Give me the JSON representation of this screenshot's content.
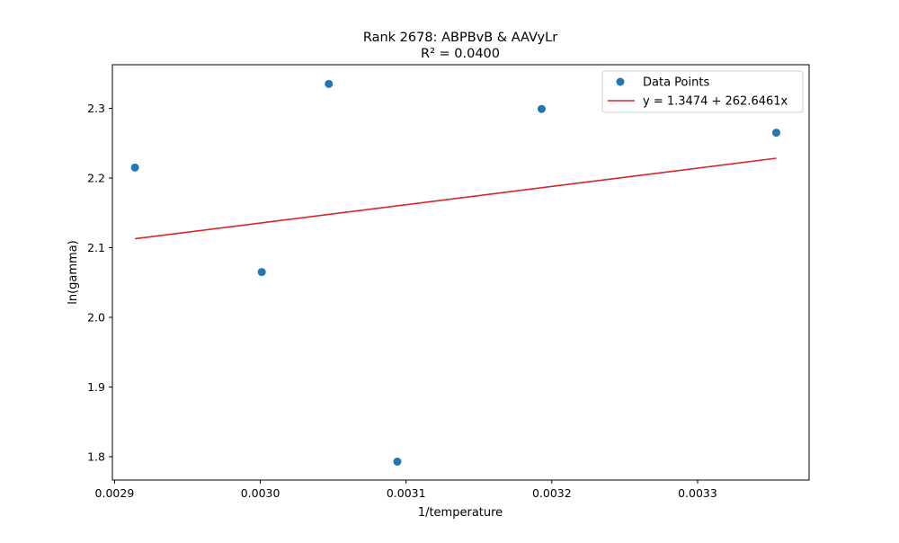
{
  "chart_data": {
    "type": "scatter",
    "title": "Rank 2678: ABPBvB & AAVyLr",
    "subtitle": "R² = 0.0400",
    "xlabel": "1/temperature",
    "ylabel": "ln(gamma)",
    "xlim": [
      0.0028985,
      0.0033765
    ],
    "ylim": [
      1.7665,
      2.3625
    ],
    "x_ticks": [
      {
        "value": 0.0029,
        "label": "0.0029"
      },
      {
        "value": 0.003,
        "label": "0.0030"
      },
      {
        "value": 0.0031,
        "label": "0.0031"
      },
      {
        "value": 0.0032,
        "label": "0.0032"
      },
      {
        "value": 0.0033,
        "label": "0.0033"
      }
    ],
    "y_ticks": [
      {
        "value": 1.8,
        "label": "1.8"
      },
      {
        "value": 1.9,
        "label": "1.9"
      },
      {
        "value": 2.0,
        "label": "2.0"
      },
      {
        "value": 2.1,
        "label": "2.1"
      },
      {
        "value": 2.2,
        "label": "2.2"
      },
      {
        "value": 2.3,
        "label": "2.3"
      }
    ],
    "grid": false,
    "legend_position": "top-right",
    "series": [
      {
        "name": "Data Points",
        "kind": "scatter",
        "color": "#1f77b4",
        "x": [
          0.002914,
          0.003001,
          0.003047,
          0.003094,
          0.003193,
          0.003354
        ],
        "y": [
          2.215,
          2.065,
          2.335,
          1.793,
          2.299,
          2.265
        ]
      },
      {
        "name": "y = 1.3474 + 262.6461x",
        "kind": "line",
        "color": "#d62728",
        "intercept": 1.3474,
        "slope": 262.6461,
        "x": [
          0.002914,
          0.003354
        ]
      }
    ]
  }
}
